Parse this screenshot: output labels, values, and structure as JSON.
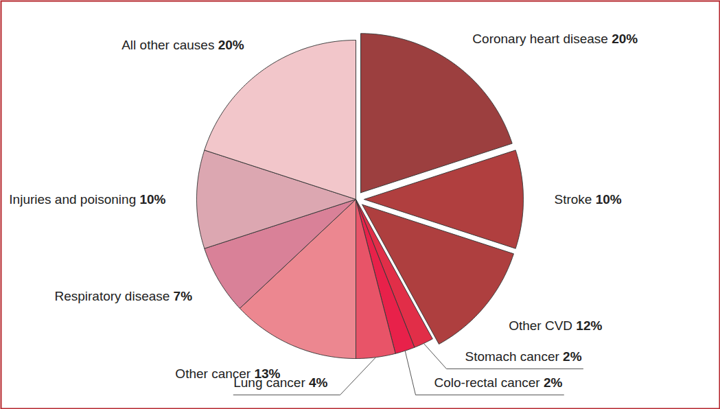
{
  "chart_data": {
    "type": "pie",
    "categories": [
      "Coronary heart disease",
      "Stroke",
      "Other CVD",
      "Stomach cancer",
      "Colo-rectal cancer",
      "Lung cancer",
      "Other cancer",
      "Respiratory disease",
      "Injuries and poisoning",
      "All other causes"
    ],
    "values": [
      20,
      10,
      12,
      2,
      2,
      4,
      13,
      7,
      10,
      20
    ],
    "value_labels": [
      "20%",
      "10%",
      "12%",
      "2%",
      "2%",
      "4%",
      "13%",
      "7%",
      "10%",
      "20%"
    ],
    "colors": [
      "#9c3f3f",
      "#b03f3f",
      "#ae3f3f",
      "#e12e48",
      "#e8214a",
      "#e85468",
      "#ec8790",
      "#d98198",
      "#dca7b1",
      "#f2c6ca"
    ],
    "data_labels": true
  }
}
